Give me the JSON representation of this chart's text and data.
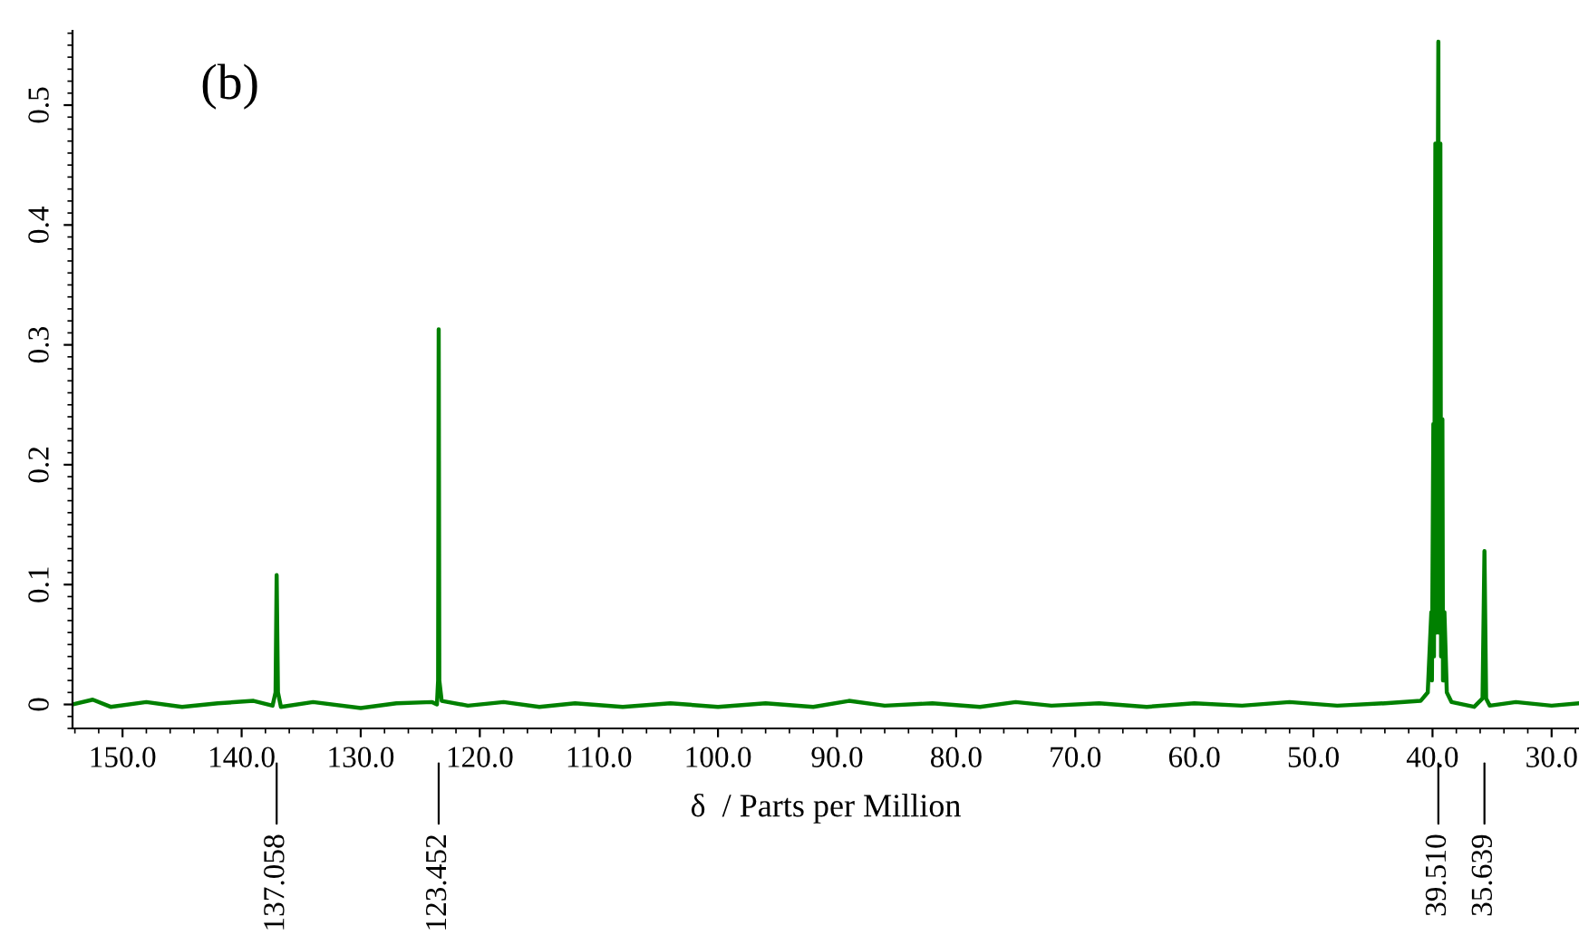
{
  "chart_data": {
    "type": "line",
    "xlabel": "δ  / Parts per Million",
    "annotations": [
      "(b)",
      {
        "text": "137.058",
        "x": 137.058
      },
      {
        "text": "123.452",
        "x": 123.452
      },
      {
        "text": "39.510",
        "x": 39.51
      },
      {
        "text": "35.639",
        "x": 35.639
      }
    ],
    "series": [
      {
        "color": "#008000",
        "x": [
          154.2,
          152.5,
          151,
          148,
          145,
          142,
          139,
          137.4,
          137.15,
          137.058,
          136.95,
          136.7,
          134,
          130,
          127,
          124,
          123.6,
          123.5,
          123.452,
          123.4,
          123.2,
          121,
          118,
          115,
          112,
          108,
          104,
          100,
          96,
          92,
          89,
          86,
          82,
          78,
          75,
          72,
          68,
          64,
          60,
          56,
          52,
          48,
          44,
          41,
          40.4,
          40.1,
          40.05,
          39.93,
          39.88,
          39.76,
          39.7,
          39.51,
          39.45,
          39.34,
          39.28,
          39.17,
          39.12,
          39.0,
          38.8,
          38.4,
          36.5,
          35.8,
          35.639,
          35.5,
          35.2,
          33,
          30,
          27.7
        ],
        "values": [
          0.0,
          0.004,
          -0.002,
          0.002,
          -0.002,
          0.001,
          0.003,
          -0.001,
          0.01,
          0.108,
          0.01,
          -0.002,
          0.002,
          -0.003,
          0.001,
          0.002,
          0.0,
          0.02,
          0.313,
          0.02,
          0.003,
          -0.001,
          0.002,
          -0.002,
          0.001,
          -0.002,
          0.001,
          -0.002,
          0.001,
          -0.002,
          0.003,
          -0.001,
          0.001,
          -0.002,
          0.002,
          -0.001,
          0.001,
          -0.002,
          0.001,
          -0.001,
          0.002,
          -0.001,
          0.001,
          0.003,
          0.01,
          0.077,
          0.02,
          0.234,
          0.04,
          0.468,
          0.06,
          0.553,
          0.06,
          0.468,
          0.04,
          0.238,
          0.02,
          0.077,
          0.01,
          0.002,
          -0.002,
          0.005,
          0.128,
          0.005,
          -0.001,
          0.002,
          -0.001,
          0.001
        ]
      }
    ],
    "xlim": [
      154.2,
      27.7
    ],
    "xticks": [
      {
        "value": 150,
        "label": "150.0"
      },
      {
        "value": 140,
        "label": "140.0"
      },
      {
        "value": 130,
        "label": "130.0"
      },
      {
        "value": 120,
        "label": "120.0"
      },
      {
        "value": 110,
        "label": "110.0"
      },
      {
        "value": 100,
        "label": "100.0"
      },
      {
        "value": 90,
        "label": "90.0"
      },
      {
        "value": 80,
        "label": "80.0"
      },
      {
        "value": 70,
        "label": "70.0"
      },
      {
        "value": 60,
        "label": "60.0"
      },
      {
        "value": 50,
        "label": "50.0"
      },
      {
        "value": 40,
        "label": "40.0"
      },
      {
        "value": 30,
        "label": "30.0"
      }
    ],
    "ylim": [
      -0.02,
      0.562
    ],
    "yticks": [
      0,
      0.1,
      0.2,
      0.3,
      0.4,
      0.5
    ],
    "grid": false,
    "legend": false,
    "marker": "none",
    "line_style": "solid"
  }
}
